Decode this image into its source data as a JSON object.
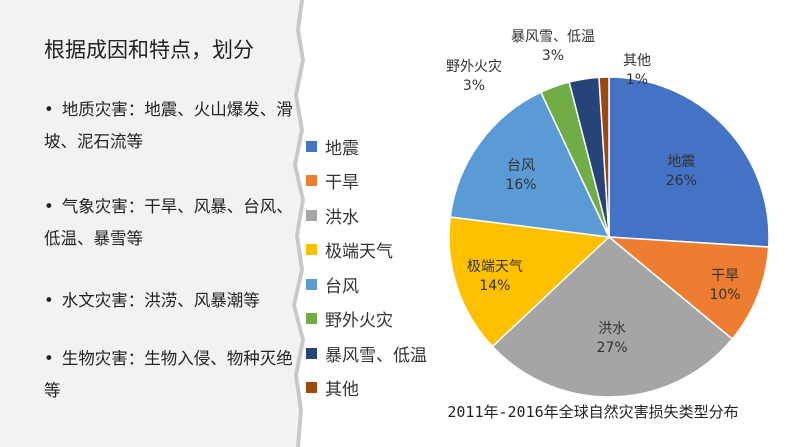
{
  "slide": {
    "heading": "根据成因和特点，划分",
    "bullets": [
      "地质灾害：地震、火山爆发、滑坡、泥石流等",
      "气象灾害：干旱、风暴、台风、低温、暴雪等",
      "水文灾害：洪涝、风暴潮等",
      "生物灾害：生物入侵、物种灭绝等"
    ],
    "bullet_glyph": "•"
  },
  "colors": {
    "panel": "#f2f2f2",
    "shadow": "#c8c8c8"
  },
  "chart_data": {
    "type": "pie",
    "title": "2011年-2016年全球自然灾害损失类型分布",
    "legend_position": "left",
    "slices": [
      {
        "name": "地震",
        "value": 26,
        "label": "26%",
        "color": "#4472c4"
      },
      {
        "name": "干旱",
        "value": 10,
        "label": "10%",
        "color": "#ed7d31"
      },
      {
        "name": "洪水",
        "value": 27,
        "label": "27%",
        "color": "#a5a5a5"
      },
      {
        "name": "极端天气",
        "value": 14,
        "label": "14%",
        "color": "#ffc000"
      },
      {
        "name": "台风",
        "value": 16,
        "label": "16%",
        "color": "#5b9bd5"
      },
      {
        "name": "野外火灾",
        "value": 3,
        "label": "3%",
        "color": "#70ad47"
      },
      {
        "name": "暴风雪、低温",
        "value": 3,
        "label": "3%",
        "color": "#264478"
      },
      {
        "name": "其他",
        "value": 1,
        "label": "1%",
        "color": "#9e480e"
      }
    ]
  }
}
